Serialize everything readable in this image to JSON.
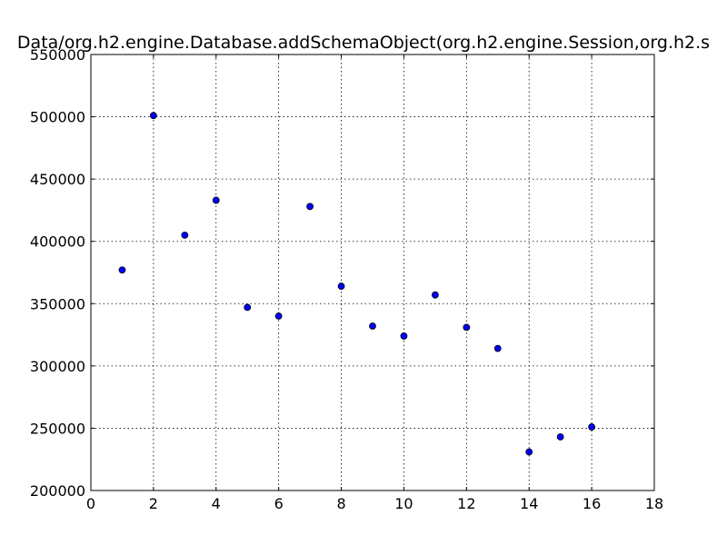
{
  "chart_data": {
    "type": "scatter",
    "title": "Data/org.h2.engine.Database.addSchemaObject(org.h2.engine.Session,org.h2.s",
    "xlabel": "",
    "ylabel": "",
    "xlim": [
      0,
      18
    ],
    "ylim": [
      200000,
      550000
    ],
    "xticks": [
      0,
      2,
      4,
      6,
      8,
      10,
      12,
      14,
      16,
      18
    ],
    "yticks": [
      200000,
      250000,
      300000,
      350000,
      400000,
      450000,
      500000,
      550000
    ],
    "xtick_labels": [
      "0",
      "2",
      "4",
      "6",
      "8",
      "10",
      "12",
      "14",
      "16",
      "18"
    ],
    "ytick_labels": [
      "200000",
      "250000",
      "300000",
      "350000",
      "400000",
      "450000",
      "500000",
      "550000"
    ],
    "grid": true,
    "point_color": "#0000ff",
    "x": [
      1,
      2,
      3,
      4,
      5,
      6,
      7,
      8,
      9,
      10,
      11,
      12,
      13,
      14,
      15,
      16
    ],
    "y": [
      377000,
      501000,
      405000,
      433000,
      347000,
      340000,
      428000,
      364000,
      332000,
      324000,
      357000,
      331000,
      314000,
      231000,
      243000,
      251000
    ]
  }
}
